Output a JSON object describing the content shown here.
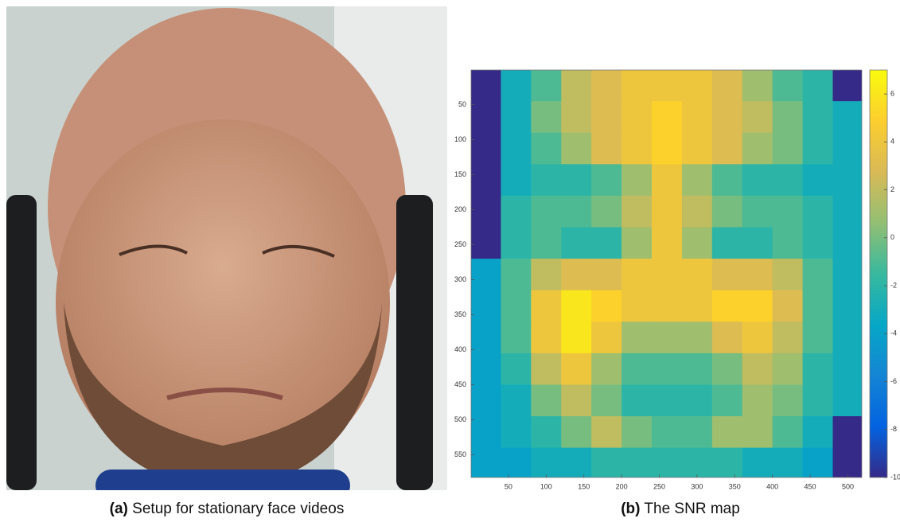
{
  "captions": [
    {
      "label": "(a)",
      "text": "Setup for stationary face videos"
    },
    {
      "label": "(b)",
      "text": "The SNR map"
    }
  ],
  "chart_data": {
    "type": "heatmap",
    "x": [
      20,
      60,
      100,
      140,
      180,
      220,
      260,
      300,
      340,
      380,
      420,
      460,
      500
    ],
    "y": [
      22.5,
      67.5,
      112.5,
      157.5,
      202.5,
      247.5,
      292.5,
      337.5,
      382.5,
      427.5,
      472.5,
      517.5,
      562.5
    ],
    "values": [
      [
        -10,
        -3,
        -1,
        2,
        3,
        4,
        4,
        4,
        3,
        1,
        -1,
        -2,
        -10
      ],
      [
        -10,
        -3,
        0,
        2,
        3,
        4,
        5,
        4,
        3,
        2,
        0,
        -2,
        -3
      ],
      [
        -10,
        -3,
        -1,
        1,
        3,
        4,
        5,
        4,
        3,
        1,
        0,
        -2,
        -3
      ],
      [
        -10,
        -3,
        -2,
        -2,
        -1,
        1,
        4,
        1,
        -1,
        -2,
        -2,
        -3,
        -3
      ],
      [
        -10,
        -2,
        -1,
        -1,
        0,
        2,
        4,
        2,
        0,
        -1,
        -1,
        -2,
        -3
      ],
      [
        -10,
        -2,
        -1,
        -2,
        -2,
        1,
        4,
        1,
        -2,
        -2,
        -1,
        -2,
        -3
      ],
      [
        -4,
        -1,
        2,
        3,
        3,
        4,
        4,
        4,
        3,
        3,
        2,
        -1,
        -3
      ],
      [
        -4,
        -1,
        4,
        6,
        5,
        4,
        4,
        4,
        5,
        5,
        3,
        -1,
        -3
      ],
      [
        -4,
        -1,
        4,
        6,
        4,
        1,
        1,
        1,
        3,
        4,
        2,
        -1,
        -3
      ],
      [
        -4,
        -2,
        2,
        4,
        1,
        -1,
        -1,
        -1,
        0,
        2,
        1,
        -2,
        -3
      ],
      [
        -4,
        -3,
        0,
        2,
        0,
        -2,
        -2,
        -2,
        -1,
        1,
        0,
        -2,
        -3
      ],
      [
        -4,
        -3,
        -2,
        0,
        2,
        0,
        -1,
        -1,
        1,
        1,
        -1,
        -3,
        -10
      ],
      [
        -4,
        -4,
        -3,
        -3,
        -2,
        -2,
        -2,
        -2,
        -2,
        -3,
        -3,
        -4,
        -10
      ]
    ],
    "xlim": [
      0.5,
      518.5
    ],
    "ylim": [
      0.5,
      582.5
    ],
    "y_reversed": true,
    "xticks": [
      50,
      100,
      150,
      200,
      250,
      300,
      350,
      400,
      450,
      500
    ],
    "yticks": [
      50,
      100,
      150,
      200,
      250,
      300,
      350,
      400,
      450,
      500,
      550
    ],
    "colormap": "parula",
    "clim": [
      -10,
      7
    ],
    "cticks": [
      -10,
      -8,
      -6,
      -4,
      -2,
      0,
      2,
      4,
      6
    ]
  }
}
